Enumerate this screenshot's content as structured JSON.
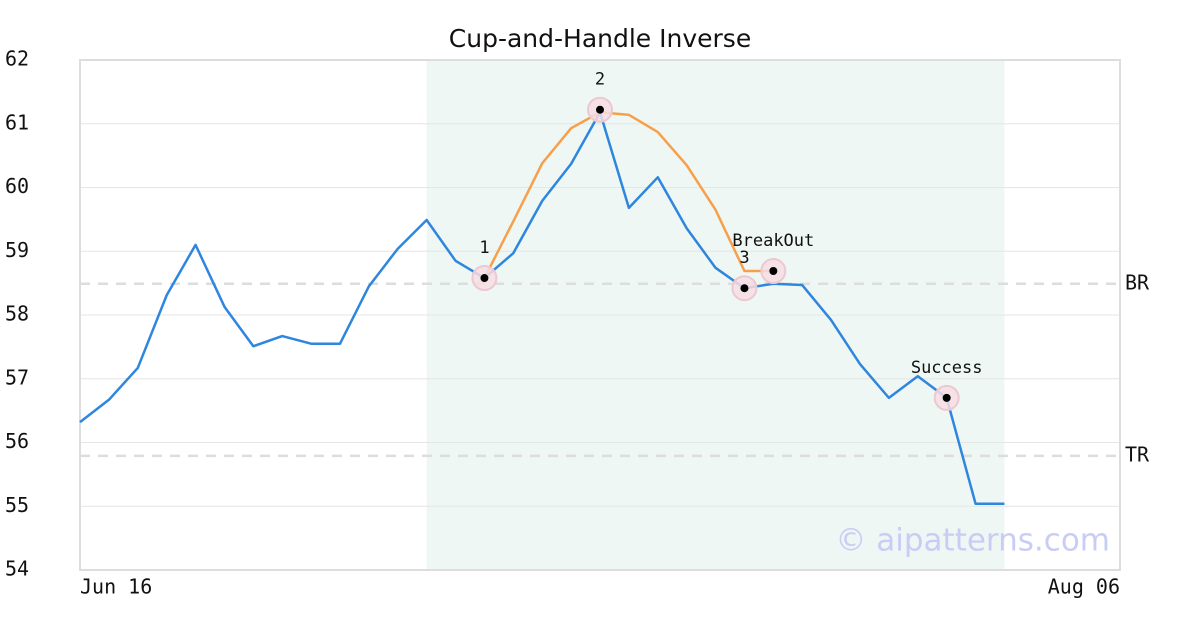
{
  "chart_data": {
    "type": "line",
    "title": "Cup-and-Handle Inverse",
    "watermark": "© aipatterns.com",
    "xlim": [
      0,
      36
    ],
    "xticks": [
      {
        "value": 0,
        "label": "Jun 16"
      },
      {
        "value": 36,
        "label": "Aug 06"
      }
    ],
    "ylim": [
      54,
      62
    ],
    "yticks": [
      54,
      55,
      56,
      57,
      58,
      59,
      60,
      61,
      62
    ],
    "grid": true,
    "span": {
      "x": [
        12,
        32
      ],
      "color": "#eef7f3"
    },
    "series": [
      {
        "color": "#2e86de",
        "x": [
          0,
          1,
          2,
          3,
          4,
          5,
          6,
          7,
          8,
          9,
          10,
          11,
          12,
          13,
          14,
          15,
          16,
          17,
          18,
          19,
          20,
          21,
          22,
          23,
          24,
          25,
          26,
          27,
          28,
          29,
          30,
          31,
          32
        ],
        "values": [
          56.32,
          56.67,
          57.17,
          58.31,
          59.1,
          58.13,
          57.51,
          57.67,
          57.55,
          57.55,
          58.45,
          59.04,
          59.49,
          58.85,
          58.58,
          58.97,
          59.79,
          60.37,
          61.18,
          59.68,
          60.16,
          59.36,
          58.74,
          58.42,
          58.49,
          58.47,
          57.92,
          57.23,
          56.7,
          57.04,
          56.7,
          55.04,
          55.04
        ]
      },
      {
        "color": "#f7a04b",
        "x": [
          14,
          15,
          16,
          17,
          18,
          19,
          20,
          21,
          22,
          23,
          24
        ],
        "values": [
          58.58,
          59.47,
          60.38,
          60.93,
          61.18,
          61.14,
          60.87,
          60.35,
          59.65,
          58.69,
          58.69
        ]
      }
    ],
    "hlines": [
      {
        "label": "BR",
        "value": 58.49
      },
      {
        "label": "TR",
        "value": 55.79
      }
    ],
    "points": [
      {
        "label": "1",
        "x": 14,
        "y": 58.58
      },
      {
        "label": "2",
        "x": 18,
        "y": 61.22
      },
      {
        "label": "3",
        "x": 23,
        "y": 58.42
      },
      {
        "label": "BreakOut",
        "x": 24,
        "y": 58.69
      },
      {
        "label": "Success",
        "x": 30,
        "y": 56.7
      }
    ]
  }
}
